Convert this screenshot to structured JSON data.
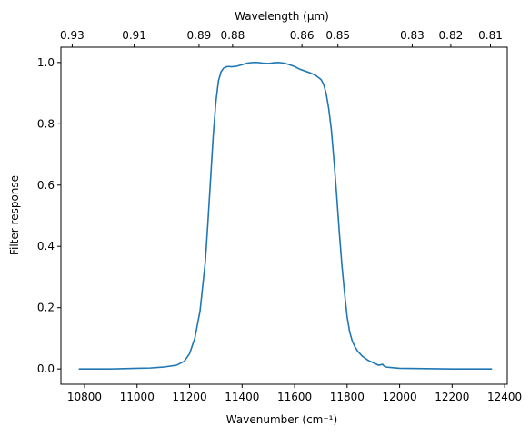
{
  "chart_data": {
    "type": "line",
    "xlabel": "Wavenumber (cm⁻¹)",
    "ylabel": "Filter response",
    "x2label": "Wavelength (μm)",
    "xlim": [
      10710,
      12410
    ],
    "ylim": [
      -0.05,
      1.05
    ],
    "xticks": [
      10800,
      11000,
      11200,
      11400,
      11600,
      11800,
      12000,
      12200,
      12400
    ],
    "yticks": [
      0.0,
      0.2,
      0.4,
      0.6,
      0.8,
      1.0
    ],
    "ytick_labels": [
      "0.0",
      "0.2",
      "0.4",
      "0.6",
      "0.8",
      "1.0"
    ],
    "x2ticks": [
      {
        "label": "0.93",
        "wavenumber": 10753
      },
      {
        "label": "0.91",
        "wavenumber": 10989
      },
      {
        "label": "0.89",
        "wavenumber": 11236
      },
      {
        "label": "0.88",
        "wavenumber": 11364
      },
      {
        "label": "0.86",
        "wavenumber": 11628
      },
      {
        "label": "0.85",
        "wavenumber": 11765
      },
      {
        "label": "0.83",
        "wavenumber": 12048
      },
      {
        "label": "0.82",
        "wavenumber": 12195
      },
      {
        "label": "0.81",
        "wavenumber": 12346
      }
    ],
    "grid": false,
    "series": [
      {
        "color": "#1f77b4",
        "x": [
          10780,
          10900,
          11000,
          11050,
          11100,
          11150,
          11180,
          11200,
          11220,
          11240,
          11260,
          11270,
          11280,
          11290,
          11300,
          11310,
          11320,
          11330,
          11340,
          11350,
          11360,
          11380,
          11400,
          11420,
          11440,
          11460,
          11480,
          11500,
          11520,
          11540,
          11560,
          11580,
          11600,
          11620,
          11640,
          11660,
          11680,
          11700,
          11710,
          11720,
          11730,
          11740,
          11750,
          11760,
          11770,
          11780,
          11790,
          11800,
          11810,
          11820,
          11830,
          11840,
          11860,
          11880,
          11900,
          11920,
          11935,
          11940,
          11950,
          11975,
          12000,
          12100,
          12200,
          12350
        ],
        "y": [
          0.0,
          0.0,
          0.002,
          0.003,
          0.006,
          0.012,
          0.025,
          0.05,
          0.1,
          0.19,
          0.35,
          0.48,
          0.62,
          0.76,
          0.87,
          0.94,
          0.97,
          0.982,
          0.986,
          0.987,
          0.986,
          0.988,
          0.993,
          0.998,
          1.0,
          1.0,
          0.998,
          0.997,
          0.999,
          1.0,
          0.998,
          0.993,
          0.987,
          0.978,
          0.972,
          0.966,
          0.958,
          0.945,
          0.93,
          0.9,
          0.85,
          0.78,
          0.68,
          0.57,
          0.45,
          0.34,
          0.25,
          0.17,
          0.12,
          0.09,
          0.072,
          0.058,
          0.04,
          0.028,
          0.02,
          0.012,
          0.015,
          0.01,
          0.006,
          0.004,
          0.002,
          0.001,
          0.0,
          0.0
        ]
      }
    ]
  }
}
